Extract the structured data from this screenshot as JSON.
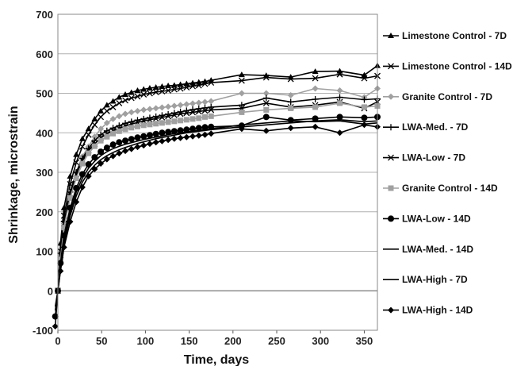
{
  "chart_data": {
    "type": "line",
    "title": "",
    "xlabel": "Time, days",
    "ylabel": "Shrinkage, microstrain",
    "xlim": [
      0,
      365
    ],
    "ylim": [
      -100,
      700
    ],
    "xticks": [
      0,
      50,
      100,
      150,
      200,
      250,
      300,
      350
    ],
    "yticks": [
      -100,
      0,
      100,
      200,
      300,
      400,
      500,
      600,
      700
    ],
    "grid": "horizontal",
    "legend_position": "right",
    "series": [
      {
        "name": "Limestone Control - 7D",
        "marker": "triangle",
        "color": "#000000",
        "x": [
          0,
          3,
          7,
          14,
          21,
          28,
          35,
          42,
          49,
          56,
          63,
          70,
          77,
          84,
          91,
          98,
          105,
          112,
          119,
          126,
          133,
          140,
          147,
          154,
          161,
          168,
          175,
          210,
          238,
          266,
          294,
          322,
          350,
          365
        ],
        "y": [
          0,
          120,
          210,
          290,
          345,
          385,
          410,
          435,
          455,
          470,
          480,
          490,
          497,
          502,
          507,
          510,
          513,
          515,
          517,
          519,
          520,
          522,
          524,
          526,
          528,
          530,
          533,
          547,
          545,
          541,
          555,
          556,
          546,
          570
        ]
      },
      {
        "name": "Limestone Control - 14D",
        "marker": "x",
        "color": "#000000",
        "x": [
          0,
          3,
          7,
          14,
          21,
          28,
          35,
          42,
          49,
          56,
          63,
          70,
          77,
          84,
          91,
          98,
          105,
          112,
          119,
          126,
          133,
          140,
          147,
          154,
          161,
          168,
          175,
          210,
          238,
          266,
          294,
          322,
          350,
          365
        ],
        "y": [
          0,
          100,
          190,
          270,
          325,
          365,
          395,
          420,
          440,
          455,
          465,
          475,
          482,
          488,
          492,
          497,
          500,
          503,
          505,
          507,
          510,
          512,
          515,
          518,
          520,
          524,
          527,
          532,
          540,
          536,
          538,
          548,
          538,
          544
        ]
      },
      {
        "name": "Granite Control - 7D",
        "marker": "diamond",
        "color": "#a0a0a0",
        "x": [
          0,
          3,
          7,
          14,
          21,
          28,
          35,
          42,
          49,
          56,
          63,
          70,
          77,
          84,
          91,
          98,
          105,
          112,
          119,
          126,
          133,
          140,
          147,
          154,
          161,
          168,
          175,
          210,
          238,
          266,
          294,
          322,
          350,
          365
        ],
        "y": [
          0,
          90,
          170,
          250,
          300,
          340,
          365,
          390,
          410,
          425,
          435,
          442,
          448,
          452,
          455,
          458,
          460,
          462,
          464,
          466,
          468,
          470,
          472,
          474,
          476,
          478,
          480,
          500,
          500,
          495,
          512,
          507,
          490,
          512
        ]
      },
      {
        "name": "LWA-Med. - 7D",
        "marker": "plus",
        "color": "#000000",
        "x": [
          0,
          3,
          7,
          14,
          21,
          28,
          35,
          42,
          49,
          56,
          63,
          70,
          77,
          84,
          91,
          98,
          105,
          112,
          119,
          126,
          133,
          140,
          147,
          154,
          161,
          168,
          175,
          210,
          238,
          266,
          294,
          322,
          350,
          365
        ],
        "y": [
          0,
          95,
          175,
          250,
          300,
          335,
          360,
          380,
          395,
          405,
          412,
          418,
          424,
          428,
          432,
          435,
          438,
          441,
          444,
          447,
          450,
          453,
          456,
          459,
          461,
          463,
          465,
          470,
          488,
          478,
          485,
          490,
          484,
          486
        ]
      },
      {
        "name": "LWA-Low - 7D",
        "marker": "x",
        "color": "#000000",
        "x": [
          0,
          3,
          7,
          14,
          21,
          28,
          35,
          42,
          49,
          56,
          63,
          70,
          77,
          84,
          91,
          98,
          105,
          112,
          119,
          126,
          133,
          140,
          147,
          154,
          161,
          168,
          175,
          210,
          238,
          266,
          294,
          322,
          350,
          365
        ],
        "y": [
          0,
          90,
          170,
          245,
          295,
          330,
          355,
          372,
          387,
          397,
          405,
          411,
          417,
          422,
          426,
          430,
          433,
          436,
          439,
          442,
          445,
          448,
          450,
          452,
          454,
          456,
          458,
          462,
          475,
          465,
          470,
          478,
          462,
          478
        ]
      },
      {
        "name": "Granite Control - 14D",
        "marker": "square",
        "color": "#a0a0a0",
        "x": [
          0,
          3,
          7,
          14,
          21,
          28,
          35,
          42,
          49,
          56,
          63,
          70,
          77,
          84,
          91,
          98,
          105,
          112,
          119,
          126,
          133,
          140,
          147,
          154,
          161,
          168,
          175,
          210,
          238,
          266,
          294,
          322,
          350,
          365
        ],
        "y": [
          0,
          80,
          160,
          235,
          285,
          322,
          348,
          366,
          380,
          390,
          398,
          404,
          409,
          413,
          416,
          419,
          421,
          423,
          425,
          427,
          429,
          431,
          433,
          435,
          437,
          440,
          442,
          452,
          458,
          462,
          465,
          475,
          465,
          468
        ]
      },
      {
        "name": "LWA-Low - 14D",
        "marker": "circle",
        "color": "#000000",
        "x": [
          -3,
          0,
          3,
          7,
          14,
          21,
          28,
          35,
          42,
          49,
          56,
          63,
          70,
          77,
          84,
          91,
          98,
          105,
          112,
          119,
          126,
          133,
          140,
          147,
          154,
          161,
          168,
          175,
          210,
          238,
          266,
          294,
          322,
          350,
          365
        ],
        "y": [
          -65,
          0,
          70,
          140,
          210,
          260,
          295,
          320,
          338,
          352,
          362,
          370,
          376,
          380,
          384,
          388,
          391,
          394,
          397,
          400,
          402,
          404,
          406,
          408,
          410,
          412,
          414,
          415,
          418,
          440,
          432,
          436,
          440,
          438,
          440
        ]
      },
      {
        "name": "LWA-Med. - 14D",
        "marker": "none",
        "color": "#000000",
        "x": [
          -3,
          0,
          3,
          7,
          14,
          21,
          28,
          35,
          42,
          49,
          56,
          63,
          70,
          77,
          84,
          91,
          98,
          105,
          112,
          119,
          126,
          133,
          140,
          147,
          154,
          161,
          168,
          175,
          210,
          238,
          266,
          294,
          322,
          350,
          365
        ],
        "y": [
          -40,
          0,
          60,
          130,
          200,
          250,
          285,
          310,
          328,
          342,
          352,
          360,
          366,
          371,
          375,
          379,
          383,
          386,
          389,
          392,
          395,
          398,
          400,
          402,
          404,
          406,
          408,
          410,
          420,
          425,
          430,
          428,
          430,
          422,
          425
        ]
      },
      {
        "name": "LWA-High - 7D",
        "marker": "none",
        "color": "#000000",
        "x": [
          -3,
          0,
          3,
          7,
          14,
          21,
          28,
          35,
          42,
          49,
          56,
          63,
          70,
          77,
          84,
          91,
          98,
          105,
          112,
          119,
          126,
          133,
          140,
          147,
          154,
          161,
          168,
          175,
          210,
          238,
          266,
          294,
          322,
          350,
          365
        ],
        "y": [
          -50,
          0,
          55,
          120,
          190,
          240,
          275,
          300,
          318,
          332,
          342,
          350,
          357,
          363,
          368,
          373,
          377,
          381,
          385,
          388,
          391,
          394,
          397,
          400,
          402,
          404,
          406,
          408,
          415,
          420,
          425,
          430,
          433,
          428,
          430
        ]
      },
      {
        "name": "LWA-High - 14D",
        "marker": "diamond",
        "color": "#000000",
        "x": [
          -3,
          0,
          3,
          7,
          14,
          21,
          28,
          35,
          42,
          49,
          56,
          63,
          70,
          77,
          84,
          91,
          98,
          105,
          112,
          119,
          126,
          133,
          140,
          147,
          154,
          161,
          168,
          175,
          210,
          238,
          266,
          294,
          322,
          350,
          365
        ],
        "y": [
          -90,
          0,
          50,
          110,
          175,
          225,
          262,
          290,
          308,
          322,
          333,
          341,
          348,
          354,
          359,
          364,
          368,
          372,
          376,
          379,
          382,
          385,
          387,
          389,
          391,
          393,
          395,
          398,
          410,
          405,
          412,
          415,
          400,
          420,
          415
        ]
      }
    ]
  }
}
